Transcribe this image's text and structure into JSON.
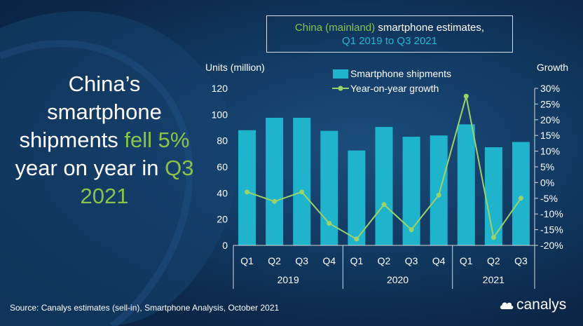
{
  "headline": {
    "part1": "China’s smartphone shipments ",
    "part2": "fell 5%",
    "part3": " year on year in ",
    "part4": "Q3 2021"
  },
  "title_box": {
    "line1_green": "China (mainland)",
    "line1_white": " smartphone estimates,",
    "line2": "Q1 2019 to Q3 2021"
  },
  "source": "Source: Canalys estimates (sell-in), Smartphone Analysis, October 2021",
  "logo": "canalys",
  "colors": {
    "bar": "#1fb3cc",
    "line": "#9bd36b",
    "text": "#ffffff",
    "accent_green": "#8bc34a",
    "accent_blue": "#29b6d6"
  },
  "chart_data": {
    "type": "bar",
    "categories": [
      "Q1",
      "Q2",
      "Q3",
      "Q4",
      "Q1",
      "Q2",
      "Q3",
      "Q4",
      "Q1",
      "Q2",
      "Q3"
    ],
    "years": [
      {
        "label": "2019",
        "start": 0,
        "end": 3
      },
      {
        "label": "2020",
        "start": 4,
        "end": 7
      },
      {
        "label": "2021",
        "start": 8,
        "end": 10
      }
    ],
    "series": [
      {
        "name": "Smartphone shipments",
        "type": "bar",
        "axis": "left",
        "values": [
          88,
          97.5,
          97.5,
          87.5,
          72.5,
          90.5,
          83,
          84,
          92.5,
          75,
          79
        ]
      },
      {
        "name": "Year-on-year growth",
        "type": "line",
        "axis": "right",
        "values": [
          -3,
          -6,
          -3,
          -13,
          -18,
          -7,
          -15,
          -4,
          27.5,
          -17.5,
          -5
        ]
      }
    ],
    "y_left": {
      "label": "Units (million)",
      "min": 0,
      "max": 120,
      "ticks": [
        0,
        20,
        40,
        60,
        80,
        100,
        120
      ]
    },
    "y_right": {
      "label": "Growth",
      "min": -20,
      "max": 30,
      "ticks": [
        -20,
        -15,
        -10,
        -5,
        0,
        5,
        10,
        15,
        20,
        25,
        30
      ],
      "tick_labels": [
        "-20%",
        "-15%",
        "-10%",
        "-5%",
        "0%",
        "5%",
        "10%",
        "15%",
        "20%",
        "25%",
        "30%"
      ]
    },
    "legend": "top"
  }
}
